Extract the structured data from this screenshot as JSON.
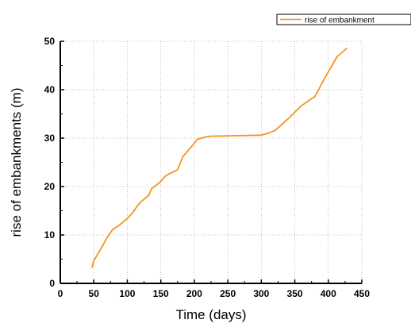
{
  "chart_data": {
    "type": "line",
    "title": "",
    "xlabel": "Time (days)",
    "ylabel": "rise of embankments  (m)",
    "xlim": [
      0,
      450
    ],
    "ylim": [
      0,
      50
    ],
    "xticks": [
      0,
      50,
      100,
      150,
      200,
      250,
      300,
      350,
      400,
      450
    ],
    "yticks": [
      0,
      10,
      20,
      30,
      40,
      50
    ],
    "grid": true,
    "legend": {
      "position": "top-right"
    },
    "colors": {
      "series": "#f5931f",
      "axis": "#000000",
      "grid": "#b0b0b0"
    },
    "series": [
      {
        "name": "rise of  embankment",
        "x": [
          47,
          50,
          55,
          62,
          70,
          78,
          88,
          100,
          108,
          115,
          120,
          126,
          132,
          136,
          148,
          158,
          165,
          170,
          175,
          183,
          192,
          205,
          222,
          260,
          300,
          305,
          320,
          340,
          360,
          380,
          395,
          413,
          428
        ],
        "y": [
          3.2,
          4.7,
          5.8,
          7.5,
          9.5,
          11.1,
          12.0,
          13.4,
          14.6,
          16.0,
          16.8,
          17.5,
          18.2,
          19.5,
          20.8,
          22.3,
          22.8,
          23.1,
          23.5,
          26.2,
          27.6,
          29.8,
          30.4,
          30.5,
          30.6,
          30.8,
          31.5,
          34.0,
          36.7,
          38.6,
          42.5,
          46.8,
          48.6
        ]
      }
    ]
  }
}
